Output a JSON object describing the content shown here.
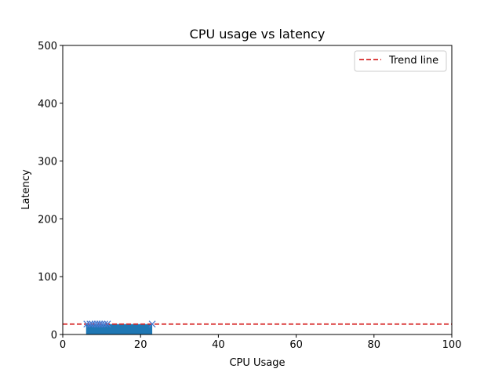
{
  "chart_data": {
    "type": "scatter",
    "title": "CPU usage vs latency",
    "xlabel": "CPU Usage",
    "ylabel": "Latency",
    "xlim": [
      0,
      100
    ],
    "ylim": [
      0,
      500
    ],
    "xticks": [
      0,
      20,
      40,
      60,
      80,
      100
    ],
    "yticks": [
      0,
      100,
      200,
      300,
      400,
      500
    ],
    "grid": false,
    "legend_position": "upper right",
    "fill": {
      "x_start": 6,
      "x_end": 23,
      "y_low": 0,
      "y_high": 18,
      "color": "#1f77b4"
    },
    "scatter": {
      "marker": "x",
      "color": "#4878cf",
      "points": [
        {
          "x": 6.2,
          "y": 18
        },
        {
          "x": 7.0,
          "y": 18
        },
        {
          "x": 7.6,
          "y": 18
        },
        {
          "x": 8.3,
          "y": 18
        },
        {
          "x": 8.9,
          "y": 18
        },
        {
          "x": 9.5,
          "y": 18
        },
        {
          "x": 10.1,
          "y": 18
        },
        {
          "x": 10.8,
          "y": 18
        },
        {
          "x": 11.5,
          "y": 18
        },
        {
          "x": 23.0,
          "y": 18
        }
      ]
    },
    "series": [
      {
        "name": "Trend line",
        "y": 18,
        "color": "#d62728",
        "style": "dashed"
      }
    ]
  }
}
